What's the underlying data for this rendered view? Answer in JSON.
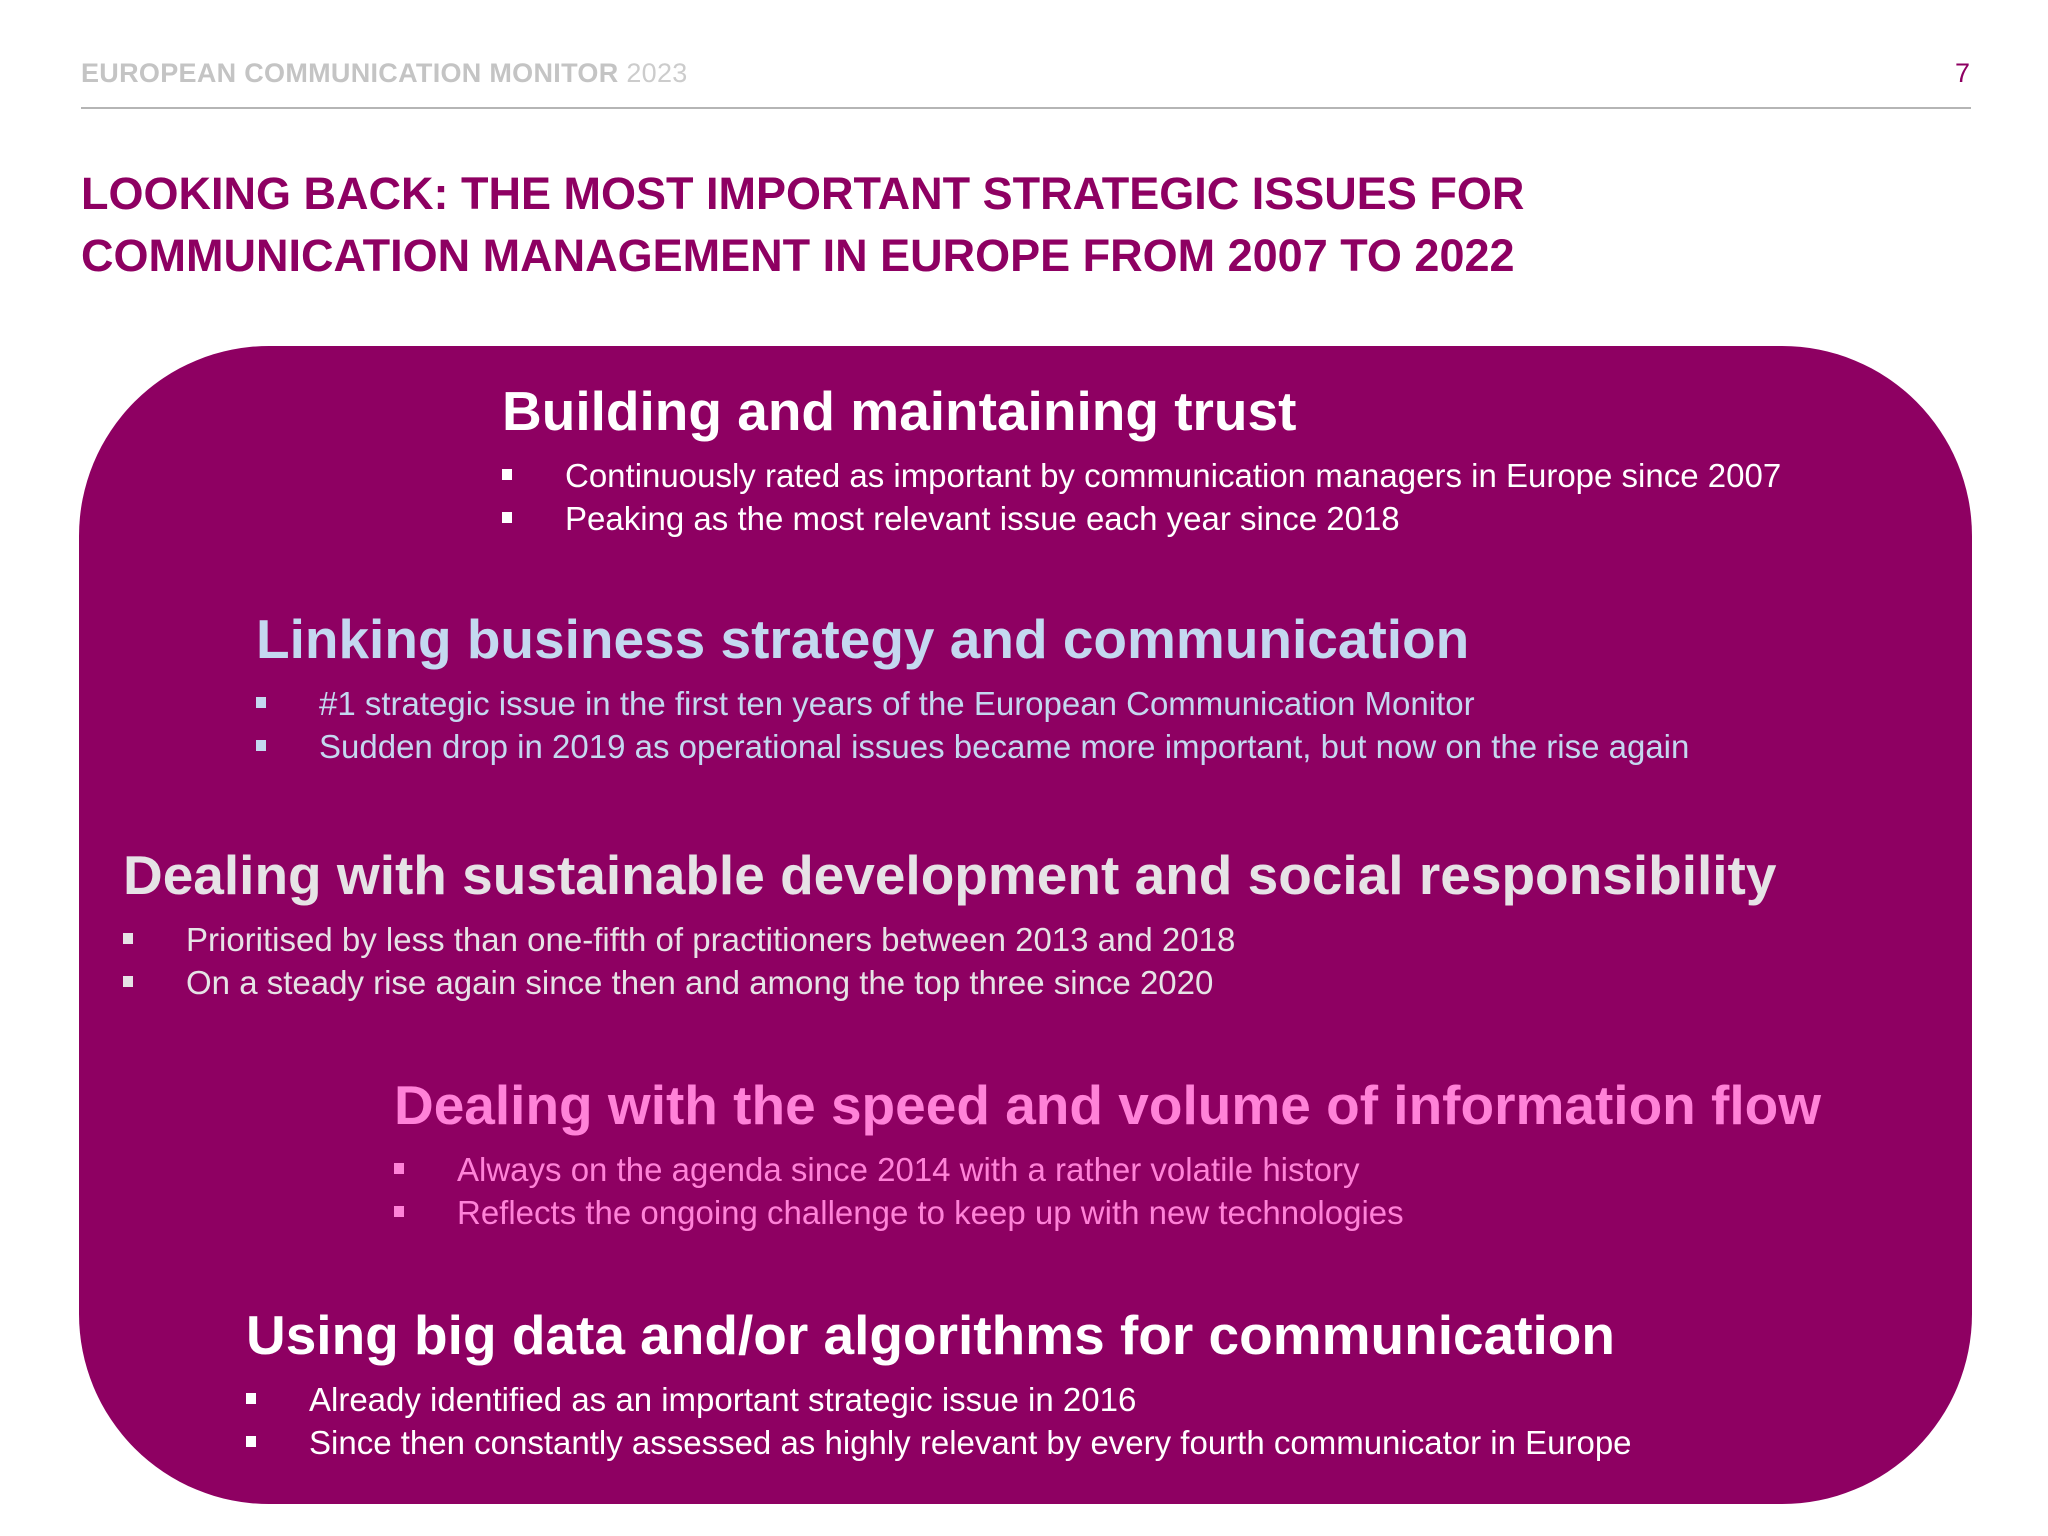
{
  "header": {
    "title": "EUROPEAN COMMUNICATION MONITOR",
    "year": "2023",
    "page_number": "7"
  },
  "slide_title": "LOOKING BACK: THE MOST IMPORTANT STRATEGIC ISSUES FOR COMMUNICATION MANAGEMENT IN EUROPE FROM 2007 TO 2022",
  "colors": {
    "brand": "#8e0062",
    "issue_1": "#ffffff",
    "issue_2": "#c4d8f0",
    "issue_3": "#e6e3e6",
    "issue_4": "#ff82d8",
    "issue_5": "#ffffff"
  },
  "issues": [
    {
      "heading": "Building and maintaining trust",
      "bullets": [
        "Continuously rated as important by communication managers in Europe since 2007",
        "Peaking as the most relevant issue each year since 2018"
      ]
    },
    {
      "heading": "Linking business strategy and communication",
      "bullets": [
        "#1 strategic issue in the first ten years of the European Communication Monitor",
        "Sudden drop in 2019 as operational issues became more important, but now on the rise again"
      ]
    },
    {
      "heading": "Dealing with sustainable development and social responsibility",
      "bullets": [
        "Prioritised by less than one-fifth of practitioners between 2013 and 2018",
        "On a steady rise again since then and among the top three since 2020"
      ]
    },
    {
      "heading": "Dealing with the speed and volume of information flow",
      "bullets": [
        "Always on the agenda since 2014 with a rather volatile history",
        "Reflects the ongoing challenge to keep up with new technologies"
      ]
    },
    {
      "heading": "Using big data and/or algorithms for communication",
      "bullets": [
        "Already identified as an important strategic issue in 2016",
        "Since then constantly assessed as highly relevant by every fourth communicator in Europe"
      ]
    }
  ]
}
